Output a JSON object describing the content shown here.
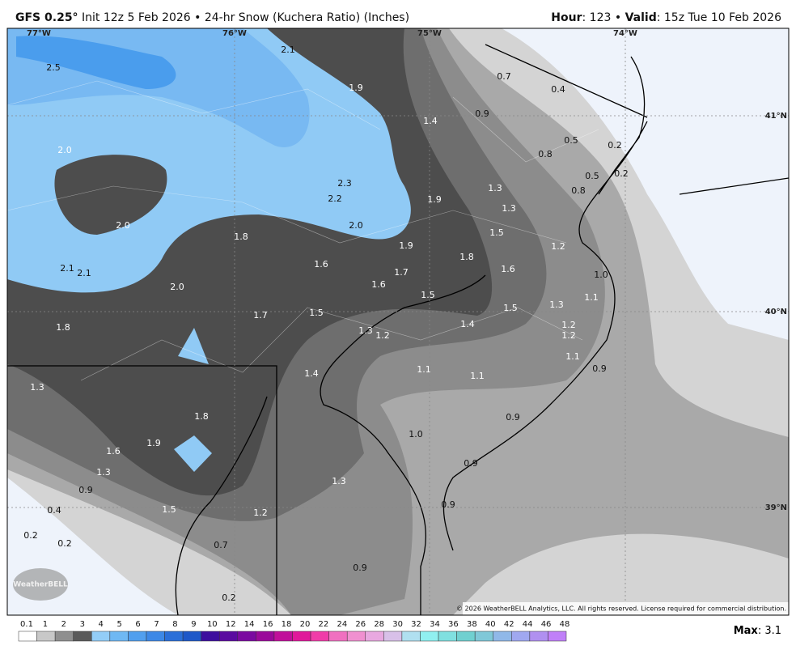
{
  "header": {
    "model": "GFS 0.25°",
    "init": "Init 12z 5 Feb 2026 • 24-hr Snow (Kuchera Ratio) (Inches)",
    "hour_label": "Hour",
    "hour_value": ": 123 •",
    "valid_label": "Valid",
    "valid_value": ": 15z Tue 10 Feb 2026"
  },
  "map": {
    "lon_labels": [
      "77°W",
      "76°W",
      "75°W",
      "74°W"
    ],
    "lat_labels": [
      "41°N",
      "40°N",
      "39°N"
    ],
    "value_labels": [
      "2.5",
      "2.1",
      "1.9",
      "2.0",
      "1.4",
      "0.9",
      "0.7",
      "0.4",
      "0.5",
      "0.2",
      "0.8",
      "0.5",
      "0.2",
      "0.8",
      "2.3",
      "2.2",
      "1.9",
      "1.3",
      "1.3",
      "2.0",
      "2.0",
      "1.8",
      "1.5",
      "1.9",
      "1.2",
      "1.8",
      "1.6",
      "2.1",
      "2.1",
      "1.7",
      "1.6",
      "1.0",
      "2.0",
      "1.6",
      "1.5",
      "1.1",
      "1.3",
      "1.5",
      "1.7",
      "1.5",
      "1.8",
      "1.4",
      "1.2",
      "1.3",
      "1.2",
      "1.2",
      "1.1",
      "0.9",
      "1.4",
      "1.1",
      "1.1",
      "1.3",
      "1.8",
      "0.9",
      "1.0",
      "1.9",
      "1.6",
      "0.9",
      "1.3",
      "1.3",
      "0.9",
      "0.9",
      "0.4",
      "1.5",
      "1.2",
      "0.2",
      "0.2",
      "0.7",
      "0.9",
      "0.2"
    ],
    "copyright": "© 2026 WeatherBELL Analytics, LLC. All rights reserved. License required for commercial distribution.",
    "logo": "WeatherBELL"
  },
  "colorbar": {
    "labels": [
      "0.1",
      "1",
      "2",
      "3",
      "4",
      "5",
      "6",
      "7",
      "8",
      "9",
      "10",
      "12",
      "14",
      "16",
      "18",
      "20",
      "22",
      "24",
      "26",
      "28",
      "30",
      "32",
      "34",
      "36",
      "38",
      "40",
      "42",
      "44",
      "46",
      "48"
    ],
    "colors": [
      "#ffffff",
      "#c8c8c8",
      "#8f8f8f",
      "#5a5a5a",
      "#93cdf7",
      "#6fb8f3",
      "#519fee",
      "#3d88e6",
      "#2b6fd8",
      "#1e58c8",
      "#3d0f9e",
      "#5a0aa0",
      "#7a0aa0",
      "#9a0a9a",
      "#c0109a",
      "#e0189a",
      "#f03ca8",
      "#f070c0",
      "#f090d0",
      "#e8a8e0",
      "#d8c0e8",
      "#b0e0f0",
      "#90f0f0",
      "#80e0e0",
      "#70d0d0",
      "#80c8d8",
      "#90b8e8",
      "#a0a8f0",
      "#b090f0",
      "#c080f8"
    ],
    "max_label": "Max",
    "max_value": ": 3.1"
  }
}
